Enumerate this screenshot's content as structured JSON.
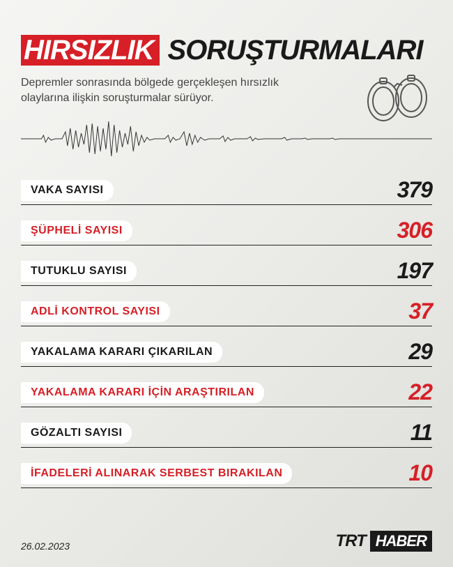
{
  "colors": {
    "accent": "#d61f26",
    "dark": "#1a1a1a",
    "white": "#ffffff"
  },
  "title": {
    "highlight": "HIRSIZLIK",
    "rest": "SORUŞTURMALARI"
  },
  "subtitle": "Depremler sonrasında bölgede gerçekleşen hırsızlık olaylarına ilişkin soruşturmalar sürüyor.",
  "stats": [
    {
      "label": "VAKA SAYISI",
      "value": "379",
      "color": "#1a1a1a"
    },
    {
      "label": "ŞÜPHELİ SAYISI",
      "value": "306",
      "color": "#d61f26"
    },
    {
      "label": "TUTUKLU SAYISI",
      "value": "197",
      "color": "#1a1a1a"
    },
    {
      "label": "ADLİ KONTROL SAYISI",
      "value": "37",
      "color": "#d61f26"
    },
    {
      "label": "YAKALAMA KARARI ÇIKARILAN",
      "value": "29",
      "color": "#1a1a1a"
    },
    {
      "label": "YAKALAMA KARARI İÇİN ARAŞTIRILAN",
      "value": "22",
      "color": "#d61f26"
    },
    {
      "label": "GÖZALTI SAYISI",
      "value": "11",
      "color": "#1a1a1a"
    },
    {
      "label": "İFADELERİ ALINARAK SERBEST BIRAKILAN",
      "value": "10",
      "color": "#d61f26"
    }
  ],
  "date": "26.02.2023",
  "logo": {
    "part1": "TRT",
    "part2": "HABER"
  }
}
